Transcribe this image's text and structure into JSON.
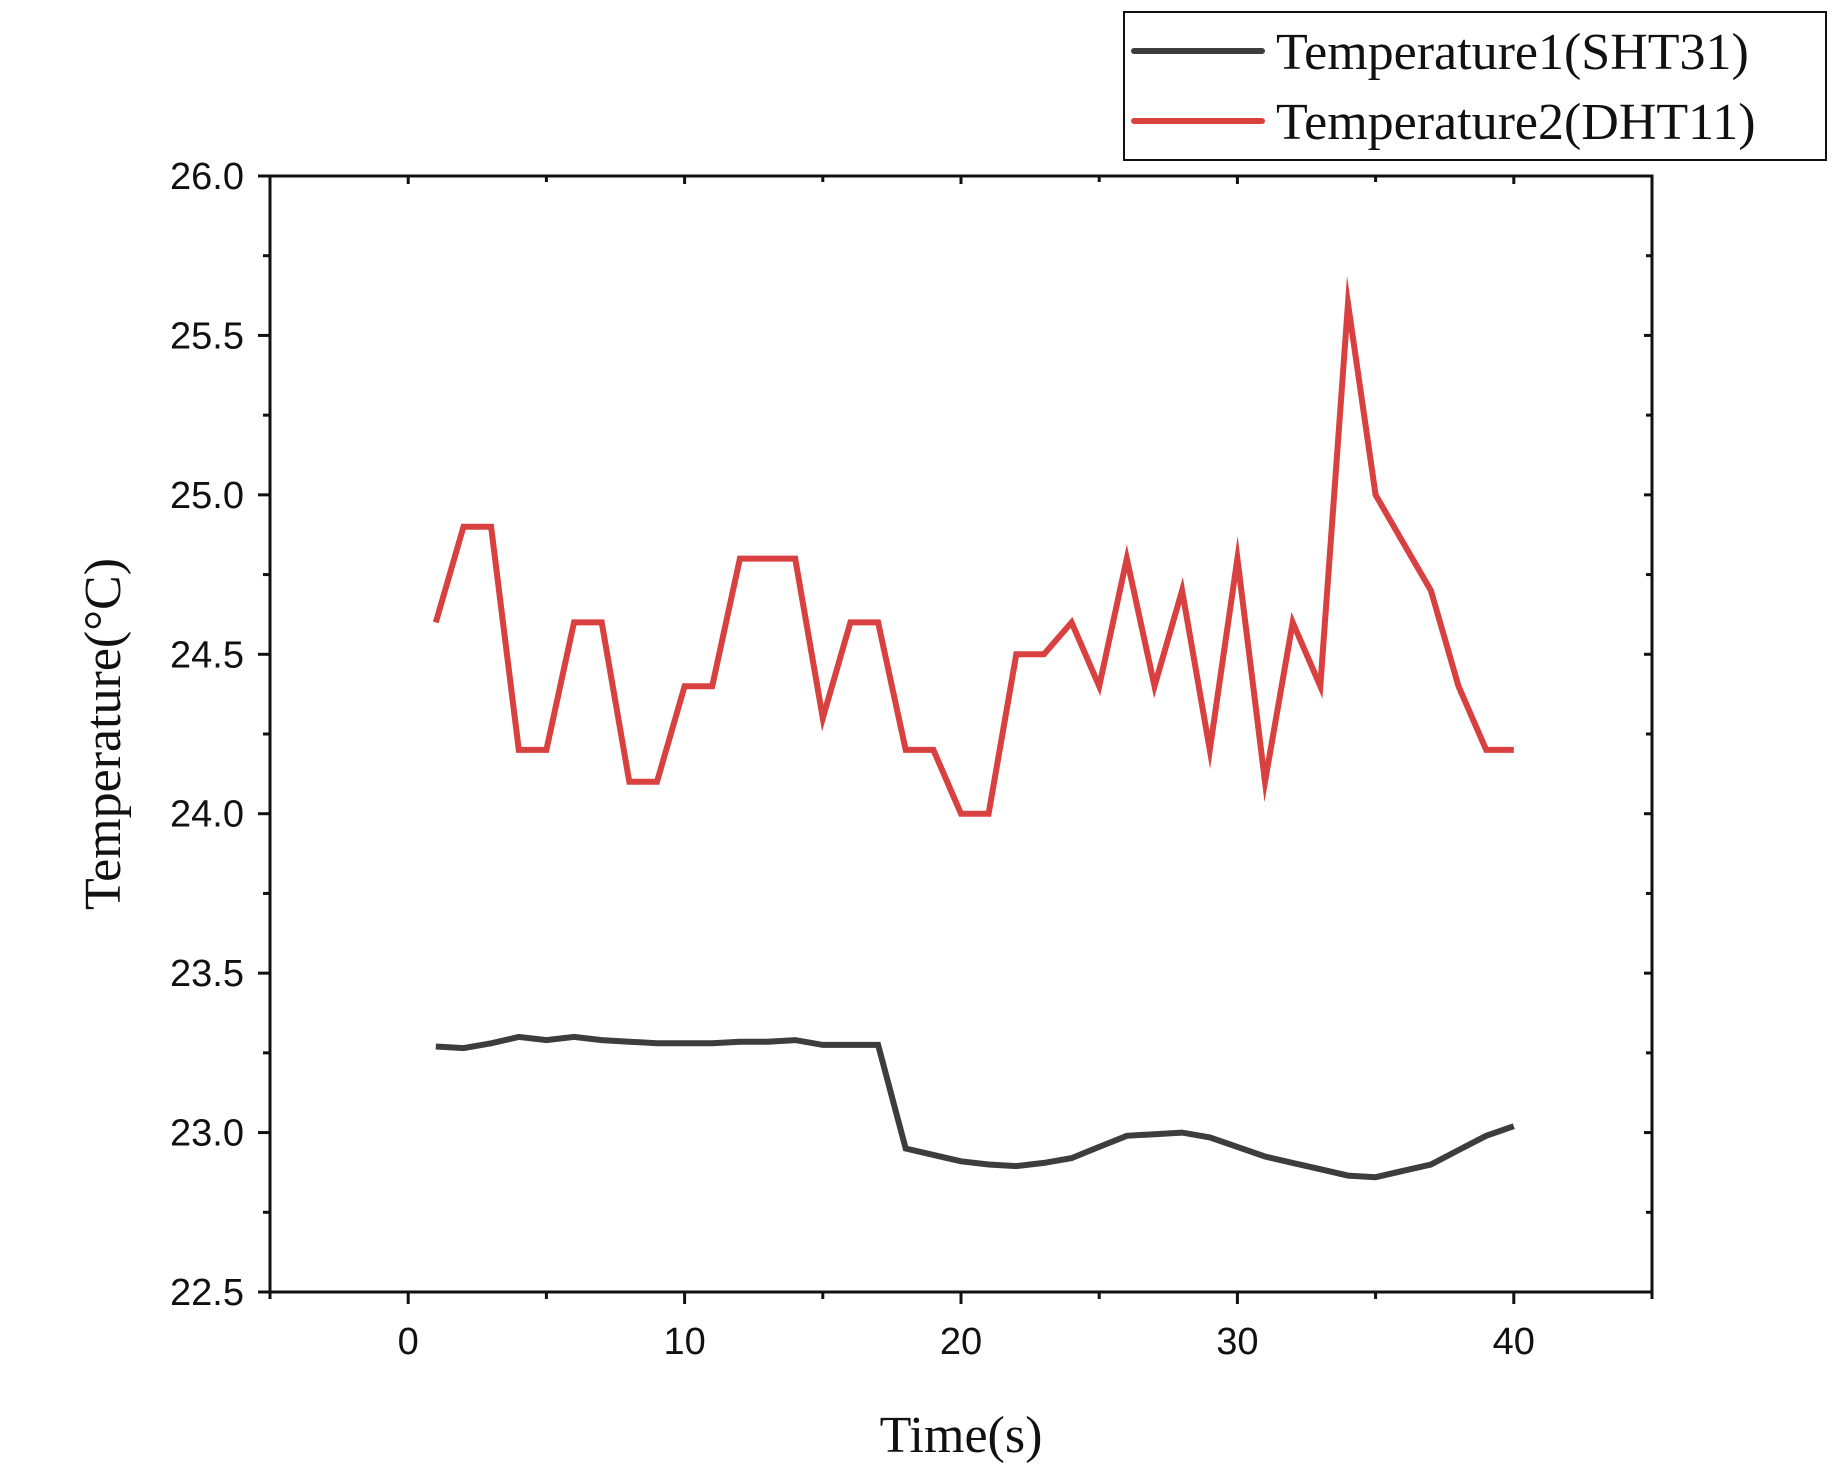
{
  "chart_data": {
    "type": "line",
    "title": "",
    "xlabel": "Time(s)",
    "ylabel": "Temperature(°C)",
    "xlim": [
      -5,
      45
    ],
    "ylim": [
      22.5,
      26.0
    ],
    "xticks": [
      0,
      10,
      20,
      30,
      40
    ],
    "xtick_labels": [
      "0",
      "10",
      "20",
      "30",
      "40"
    ],
    "yticks": [
      22.5,
      23.0,
      23.5,
      24.0,
      24.5,
      25.0,
      25.5,
      26.0
    ],
    "ytick_labels": [
      "22.5",
      "23.0",
      "23.5",
      "24.0",
      "24.5",
      "25.0",
      "25.5",
      "26.0"
    ],
    "grid": false,
    "legend_position": "top-right, outside above plot",
    "x": [
      1,
      2,
      3,
      4,
      5,
      6,
      7,
      8,
      9,
      10,
      11,
      12,
      13,
      14,
      15,
      16,
      17,
      18,
      19,
      20,
      21,
      22,
      23,
      24,
      25,
      26,
      27,
      28,
      29,
      30,
      31,
      32,
      33,
      34,
      35,
      36,
      37,
      38,
      39,
      40
    ],
    "series": [
      {
        "name": "Temperature1(SHT31)",
        "color": "#3d3d3d",
        "values": [
          23.27,
          23.265,
          23.28,
          23.3,
          23.29,
          23.3,
          23.29,
          23.285,
          23.28,
          23.28,
          23.28,
          23.285,
          23.285,
          23.29,
          23.275,
          23.275,
          23.275,
          22.95,
          22.93,
          22.91,
          22.9,
          22.895,
          22.905,
          22.92,
          22.955,
          22.99,
          22.995,
          23.0,
          22.985,
          22.955,
          22.925,
          22.905,
          22.885,
          22.865,
          22.86,
          22.88,
          22.9,
          22.945,
          22.99,
          23.02
        ]
      },
      {
        "name": "Temperature2(DHT11)",
        "color": "#d94040",
        "values": [
          24.6,
          24.9,
          24.9,
          24.2,
          24.2,
          24.6,
          24.6,
          24.1,
          24.1,
          24.4,
          24.4,
          24.8,
          24.8,
          24.8,
          24.3,
          24.6,
          24.6,
          24.2,
          24.2,
          24.0,
          24.0,
          24.5,
          24.5,
          24.6,
          24.4,
          24.8,
          24.4,
          24.7,
          24.2,
          24.8,
          24.1,
          24.6,
          24.4,
          25.6,
          25.0,
          24.85,
          24.7,
          24.4,
          24.2,
          24.2
        ]
      }
    ]
  }
}
